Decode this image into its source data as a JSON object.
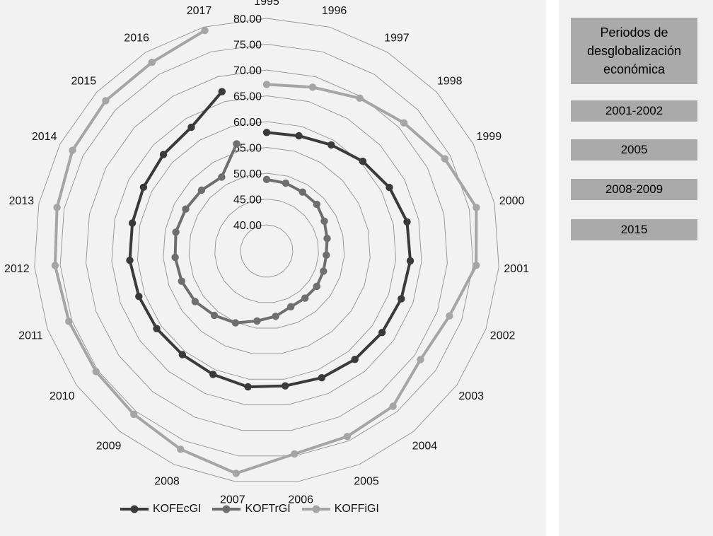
{
  "chart_data": {
    "type": "radar",
    "categories": [
      "1995",
      "1996",
      "1997",
      "1998",
      "1999",
      "2000",
      "2001",
      "2002",
      "2003",
      "2004",
      "2005",
      "2006",
      "2007",
      "2008",
      "2009",
      "2010",
      "2011",
      "2012",
      "2013",
      "2014",
      "2015",
      "2016",
      "2017"
    ],
    "tick_labels": [
      "40.00",
      "45.00",
      "50.00",
      "55.00",
      "60.00",
      "65.00",
      "70.00",
      "75.00",
      "80.00"
    ],
    "rlim": [
      40,
      80
    ],
    "grid": true,
    "legend_position": "bottom",
    "series": [
      {
        "name": "KOFEcGI",
        "color": "#3a3a3a",
        "values": [
          57.9,
          58.1,
          59.0,
          60.4,
          61.7,
          62.7,
          62.8,
          62.6,
          62.3,
          62.0,
          61.7,
          61.3,
          61.5,
          61.0,
          60.8,
          61.0,
          61.2,
          61.5,
          61.5,
          61.8,
          62.3,
          63.0,
          67.0
        ]
      },
      {
        "name": "KOFTrGI",
        "color": "#6e6e6e",
        "values": [
          48.8,
          48.6,
          48.3,
          48.2,
          47.5,
          46.9,
          46.5,
          46.6,
          46.8,
          46.7,
          46.7,
          47.7,
          48.6,
          50.1,
          51.0,
          51.9,
          52.4,
          52.7,
          52.9,
          52.6,
          52.2,
          51.7,
          56.5
        ]
      },
      {
        "name": "KOFFiGI",
        "color": "#a5a5a5",
        "values": [
          67.2,
          67.9,
          69.6,
          71.3,
          73.8,
          76.4,
          75.6,
          72.5,
          71.4,
          73.7,
          74.1,
          74.6,
          78.4,
          76.8,
          75.7,
          75.4,
          75.6,
          76.0,
          76.4,
          77.3,
          77.6,
          77.7,
          79.3
        ]
      }
    ]
  },
  "side_panel": {
    "title": "Periodos de desglobalización económica",
    "periods": [
      "2001-2002",
      "2005",
      "2008-2009",
      "2015"
    ]
  }
}
